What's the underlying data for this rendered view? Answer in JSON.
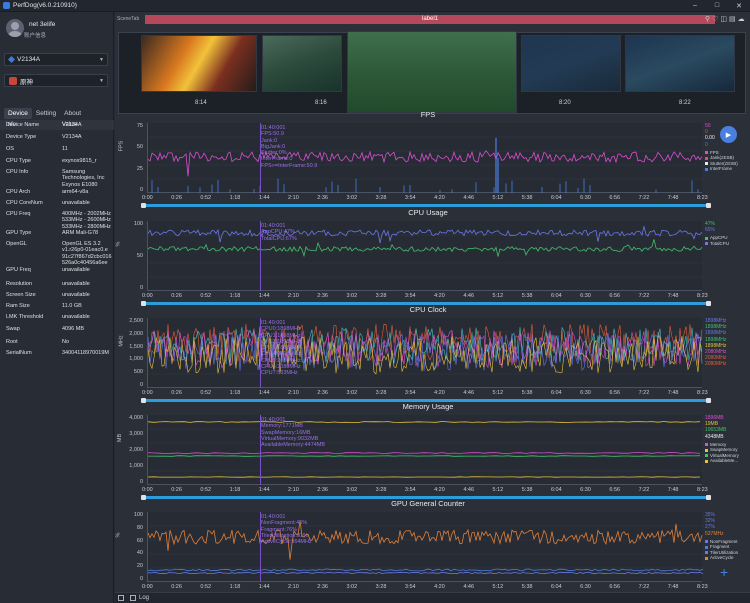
{
  "app": {
    "title": "PerfDog(v6.0.210910)"
  },
  "user": {
    "name": "net 3elife",
    "account": "账户信息"
  },
  "device": {
    "selected": "V2134A"
  },
  "app_selector": {
    "selected": "原神"
  },
  "sidebar_tabs": [
    {
      "label": "Device"
    },
    {
      "label": "Setting"
    },
    {
      "label": "About"
    }
  ],
  "info_table": {
    "headers": [
      "Info",
      "Value"
    ],
    "rows": [
      {
        "k": "Device Name",
        "v": "V2134A"
      },
      {
        "k": "Device Type",
        "v": "V2134A"
      },
      {
        "k": "OS",
        "v": "11"
      },
      {
        "k": "CPU Type",
        "v": "exynos9815_r"
      },
      {
        "k": "CPU Info",
        "v": "Samsung Technologies, Inc Exynos E1080"
      },
      {
        "k": "CPU Arch",
        "v": "arm64-v8a"
      },
      {
        "k": "CPU CoreNum",
        "v": "unavailable"
      },
      {
        "k": "CPU Freq",
        "v": "400MHz - 2002MHz 533MHz - 2600MHz 533MHz - 2800MHz"
      },
      {
        "k": "GPU Type",
        "v": "ARM Mali-G78"
      },
      {
        "k": "OpenGL",
        "v": "OpenGL ES 3.2 v1.r26p0-01eac0.e 91c27f867d2cbc016 526a0c40456a6ee"
      },
      {
        "k": "GPU Freq",
        "v": "unavailable"
      },
      {
        "k": "Resolution",
        "v": "unavailable"
      },
      {
        "k": "Screen Size",
        "v": "unavailable"
      },
      {
        "k": "Ram Size",
        "v": "11.0 GB"
      },
      {
        "k": "LMK Threshold",
        "v": "unavailable"
      },
      {
        "k": "Swap",
        "v": "4096 MB"
      },
      {
        "k": "Root",
        "v": "No"
      },
      {
        "k": "SerialNum",
        "v": "34004118970019M"
      }
    ]
  },
  "scene": {
    "tab_label": "SceneTab",
    "label": "label1",
    "thumb_times": [
      "8:14",
      "8:16",
      "8:20",
      "8:22"
    ]
  },
  "x_ticks": [
    "0:00",
    "0:26",
    "0:52",
    "1:18",
    "1:44",
    "2:10",
    "2:36",
    "3:02",
    "3:28",
    "3:54",
    "4:20",
    "4:46",
    "5:12",
    "5:38",
    "6:04",
    "6:30",
    "6:56",
    "7:22",
    "7:48",
    "8:23"
  ],
  "colors": {
    "accent": "#4a7fe2",
    "label_bar": "#b5485a",
    "cursor": "#7a4fc9",
    "scroll": "#2d9cdb"
  },
  "panels": [
    {
      "title": "FPS",
      "yname": "FPS",
      "yticks": [
        "75",
        "50",
        "25",
        "0"
      ],
      "annotation": [
        "01:40:001",
        "FPS:50.9",
        "Jank:0",
        "BigJank:0",
        "Stutter:0%",
        "InterFrame:0",
        "FPS>=InterFrame:50.9"
      ],
      "right_values": [
        {
          "t": "50",
          "c": "#d94fd0"
        },
        {
          "t": "0",
          "c": "#e3505a"
        },
        {
          "t": "0.00",
          "c": "#e8eaee"
        },
        {
          "t": "0",
          "c": "#4a7fe2"
        }
      ],
      "legend": [
        {
          "n": "FPS",
          "c": "#d94fd0"
        },
        {
          "t": "Jank",
          "n": "Jank(≠ESB)",
          "c": "#e3505a"
        },
        {
          "n": "Stutter(≠ESB)",
          "c": "#e8eaee"
        },
        {
          "n": "InterFrame",
          "c": "#4a7fe2"
        }
      ]
    },
    {
      "title": "CPU Usage",
      "yname": "%",
      "yticks": [
        "100",
        "50",
        "0"
      ],
      "annotation": [
        "01:40:001",
        "AppCPU:47%",
        "TotalCPU:67%"
      ],
      "right_values": [
        {
          "t": "47%",
          "c": "#43c06a"
        },
        {
          "t": "65%",
          "c": "#6a78e8"
        }
      ],
      "legend": [
        {
          "n": "AppCPU",
          "c": "#43c06a"
        },
        {
          "n": "TotalCPU",
          "c": "#6a78e8"
        }
      ]
    },
    {
      "title": "CPU Clock",
      "yname": "MHz",
      "yticks": [
        "2,500",
        "2,000",
        "1,500",
        "1,000",
        "500",
        "0"
      ],
      "annotation": [
        "01:40:001",
        "CPU0:1898MHz",
        "CPU1:1898MHz",
        "CPU2:1898MHz",
        "CPU3:1898MHz",
        "CPU4:1898MHz",
        "CPU5:2080MHz",
        "CPU6:2080MHz",
        "CPU7:533MHz"
      ],
      "right_values": [
        {
          "t": "1898MHz",
          "c": "#6a78e8"
        },
        {
          "t": "1898MHz",
          "c": "#43c06a"
        },
        {
          "t": "1898MHz",
          "c": "#6a78e8"
        },
        {
          "t": "1898MHz",
          "c": "#43c06a"
        },
        {
          "t": "1898MHz",
          "c": "#e6c43a"
        },
        {
          "t": "2080MHz",
          "c": "#d94fd0"
        },
        {
          "t": "2080MHz",
          "c": "#e0603a"
        },
        {
          "t": "2080MHz",
          "c": "#e0603a"
        }
      ],
      "legend": []
    },
    {
      "title": "Memory Usage",
      "yname": "MB",
      "yticks": [
        "4,000",
        "3,000",
        "2,000",
        "1,000",
        "0"
      ],
      "annotation": [
        "01:40:001",
        "Memory:1771MB",
        "SwapMemory:16MB",
        "VirtualMemory:9032MB",
        "AvailableMemory:4474MB"
      ],
      "right_values": [
        {
          "t": "1896MB",
          "c": "#d94fd0"
        },
        {
          "t": "19MB",
          "c": "#e6c43a"
        },
        {
          "t": "10653MB",
          "c": "#43c06a"
        },
        {
          "t": "4348MB",
          "c": "#e8eaee"
        }
      ],
      "legend": [
        {
          "n": "Memory",
          "c": "#d94fd0"
        },
        {
          "n": "SwapMemory",
          "c": "#e6c43a"
        },
        {
          "n": "VirtualMemory",
          "c": "#43c06a"
        },
        {
          "n": "AvailableMe...",
          "c": "#e6c43a"
        }
      ]
    },
    {
      "title": "GPU General Counter",
      "yname": "%",
      "yticks": [
        "100",
        "80",
        "60",
        "40",
        "20",
        "0"
      ],
      "annotation": [
        "01:40:001",
        "NonFragment:45%",
        "Fragment:76%",
        "TilerUtilization:31%",
        "ActiveCycle:964MHz"
      ],
      "right_values": [
        {
          "t": "35%",
          "c": "#6a78e8"
        },
        {
          "t": "32%",
          "c": "#6a78e8"
        },
        {
          "t": "27%",
          "c": "#6a78e8"
        },
        {
          "t": "537MHz",
          "c": "#e0803a"
        }
      ],
      "legend": [
        {
          "n": "NonFragment",
          "c": "#6a78e8"
        },
        {
          "n": "Fragment",
          "c": "#4a7fe2"
        },
        {
          "n": "TilerUtilization",
          "c": "#6a78e8"
        },
        {
          "n": "ActiveCycle",
          "c": "#e0803a"
        }
      ]
    }
  ],
  "bottom": {
    "log_label": "Log"
  }
}
